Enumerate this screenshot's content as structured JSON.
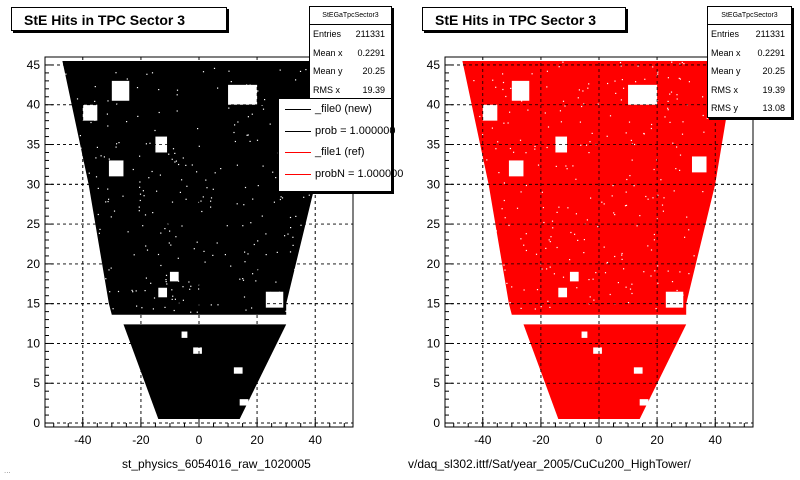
{
  "chart_data": [
    {
      "type": "scatter",
      "title": "StE Hits in TPC Sector 3",
      "xlabel": "",
      "ylabel": "",
      "xlim": [
        -53,
        53
      ],
      "ylim": [
        -0.5,
        46
      ],
      "xticks": [
        -40,
        -20,
        0,
        20,
        40
      ],
      "yticks": [
        0,
        5,
        10,
        15,
        20,
        25,
        30,
        35,
        40,
        45
      ],
      "grid": true,
      "marker_color": "#000000",
      "stats": {
        "title": "StEGaTpcSector3",
        "entries_label": "Entries",
        "entries": "211331",
        "mean_x_label": "Mean x",
        "mean_x": "0.2291",
        "mean_y_label": "Mean y",
        "mean_y": "20.25",
        "rms_x_label": "RMS x",
        "rms_x": "19.39"
      },
      "legend": {
        "position": "top-right",
        "entries": [
          {
            "label": "_file0 (new)",
            "color": "#000000"
          },
          {
            "label": "prob = 1.000000",
            "color": "#000000"
          },
          {
            "label": "_file1 (ref)",
            "color": "#ff0000"
          },
          {
            "label": "probN = 1.000000",
            "color": "#ff0000"
          }
        ]
      }
    },
    {
      "type": "scatter",
      "title": "StE Hits in TPC Sector 3",
      "xlabel": "",
      "ylabel": "",
      "xlim": [
        -53,
        53
      ],
      "ylim": [
        -0.5,
        46
      ],
      "xticks": [
        -40,
        -20,
        0,
        20,
        40
      ],
      "yticks": [
        0,
        5,
        10,
        15,
        20,
        25,
        30,
        35,
        40,
        45
      ],
      "grid": true,
      "marker_color": "#ff0000",
      "stats": {
        "title": "StEGaTpcSector3",
        "entries_label": "Entries",
        "entries": "211331",
        "mean_x_label": "Mean x",
        "mean_x": "0.2291",
        "mean_y_label": "Mean y",
        "mean_y": "20.25",
        "rms_x_label": "RMS x",
        "rms_x": "19.39",
        "rms_y_label": "RMS y",
        "rms_y": "13.08"
      }
    }
  ],
  "footer": {
    "left_caption": "st_physics_6054016_raw_1020005",
    "right_caption": "v/daq_sl302.ittf/Sat/year_2005/CuCu200_HighTower/",
    "corner_text": "..."
  }
}
